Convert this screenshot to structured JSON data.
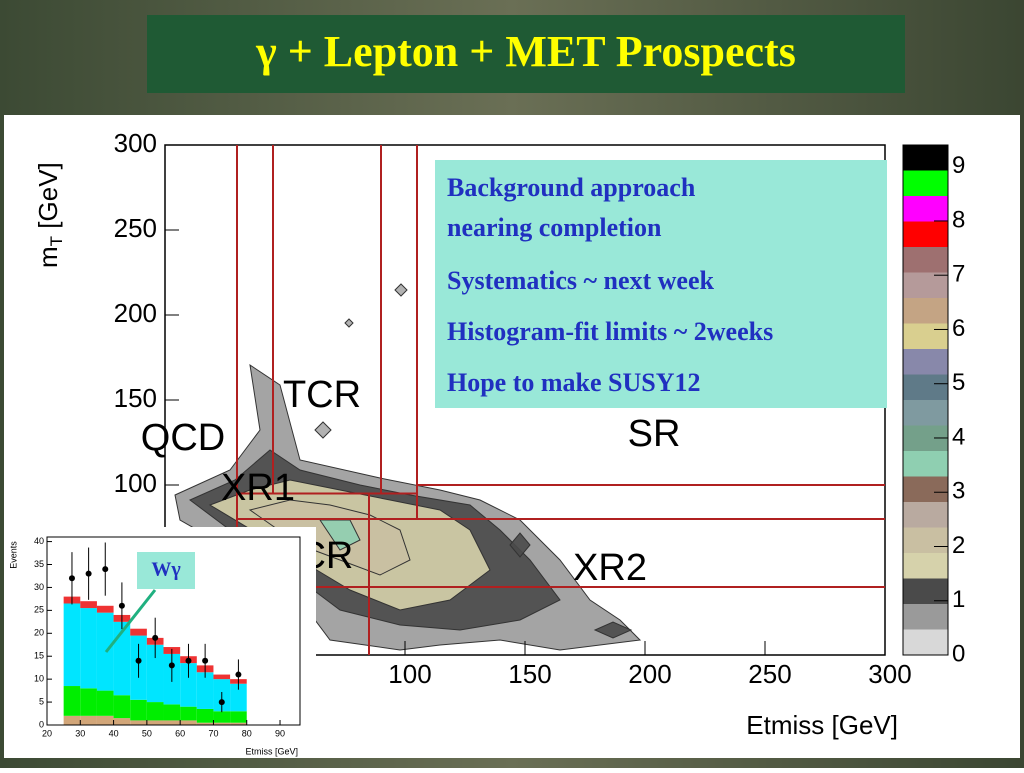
{
  "title": "γ + Lepton + MET Prospects",
  "notes": [
    "Background approach nearing completion",
    "Systematics ~ next week",
    "Histogram-fit limits ~ 2weeks",
    "Hope to make SUSY12"
  ],
  "chart_data": [
    {
      "type": "contour",
      "xlabel": "Etmiss [GeV]",
      "ylabel_parts": [
        "m",
        "T",
        " [GeV]"
      ],
      "xlim": [
        0,
        300
      ],
      "ylim": [
        0,
        300
      ],
      "xticks": [
        100,
        150,
        200,
        250,
        300
      ],
      "yticks": [
        100,
        150,
        200,
        250,
        300
      ],
      "zlim": [
        0,
        9.4
      ],
      "zticks": [
        0,
        1,
        2,
        3,
        4,
        5,
        6,
        7,
        8,
        9
      ],
      "colors": [
        "#d8d8d8",
        "#9a9a9a",
        "#4a4a4a",
        "#d6d2ab",
        "#c9bfa2",
        "#b9aaa0",
        "#8a6a5a",
        "#8fcfb1",
        "#74a08a",
        "#7f9aa0",
        "#5f7a88",
        "#8888aa",
        "#d9cf8f",
        "#c4a484",
        "#b59a9a",
        "#9e7070",
        "#ff0000",
        "#ff00ff",
        "#00ff00",
        "#000000"
      ],
      "cut_lines": [
        {
          "x": [
            30,
            30
          ],
          "y": [
            300,
            0
          ]
        },
        {
          "x": [
            45,
            45
          ],
          "y": [
            300,
            95
          ]
        },
        {
          "x": [
            90,
            90
          ],
          "y": [
            300,
            95
          ]
        },
        {
          "x": [
            105,
            105
          ],
          "y": [
            300,
            80
          ]
        },
        {
          "x": [
            85,
            85
          ],
          "y": [
            95,
            0
          ]
        },
        {
          "x": [
            105,
            300
          ],
          "y": [
            100,
            100
          ]
        },
        {
          "x": [
            30,
            105
          ],
          "y": [
            95,
            95
          ]
        },
        {
          "x": [
            30,
            300
          ],
          "y": [
            80,
            80
          ]
        },
        {
          "x": [
            30,
            300
          ],
          "y": [
            40,
            40
          ]
        }
      ],
      "regions": [
        "TCR",
        "QCD",
        "XR1",
        "SR",
        "WCR",
        "XR2"
      ]
    },
    {
      "type": "stacked-histogram",
      "xlabel": "Etmiss [GeV]",
      "ylabel": "Events",
      "annotation": "Wγ",
      "bins": [
        25,
        30,
        35,
        40,
        45,
        50,
        55,
        60,
        65,
        70,
        75,
        80
      ],
      "xlim": [
        20,
        96
      ],
      "ylim": [
        0,
        41
      ],
      "xticks": [
        20,
        30,
        40,
        50,
        60,
        70,
        80,
        90
      ],
      "yticks": [
        0,
        5,
        10,
        15,
        20,
        25,
        30,
        35,
        40
      ],
      "series": [
        {
          "color": "#d2a679",
          "values": [
            2,
            2,
            2,
            1.5,
            1,
            1,
            1,
            1,
            0.5,
            0.5,
            0.5
          ]
        },
        {
          "color": "#00ee00",
          "values": [
            6.5,
            6,
            5.5,
            5,
            4.5,
            4,
            3.5,
            3,
            3,
            2.5,
            2.5
          ]
        },
        {
          "color": "#00e5ff",
          "values": [
            18,
            17.5,
            17,
            16,
            14,
            12.5,
            11,
            9.5,
            8,
            7,
            6
          ]
        },
        {
          "color": "#ee3333",
          "values": [
            1.5,
            1.5,
            1.5,
            1.5,
            1.5,
            1.5,
            1.5,
            1.5,
            1.5,
            1,
            1
          ]
        }
      ],
      "points": {
        "x": [
          27.5,
          32.5,
          37.5,
          42.5,
          47.5,
          52.5,
          57.5,
          62.5,
          67.5,
          72.5,
          77.5
        ],
        "values": [
          32,
          33,
          34,
          26,
          14,
          19,
          13,
          14,
          14,
          5,
          11
        ],
        "errors": [
          5.7,
          5.7,
          5.8,
          5.1,
          3.7,
          4.4,
          3.6,
          3.7,
          3.7,
          2.2,
          3.3
        ]
      }
    }
  ]
}
